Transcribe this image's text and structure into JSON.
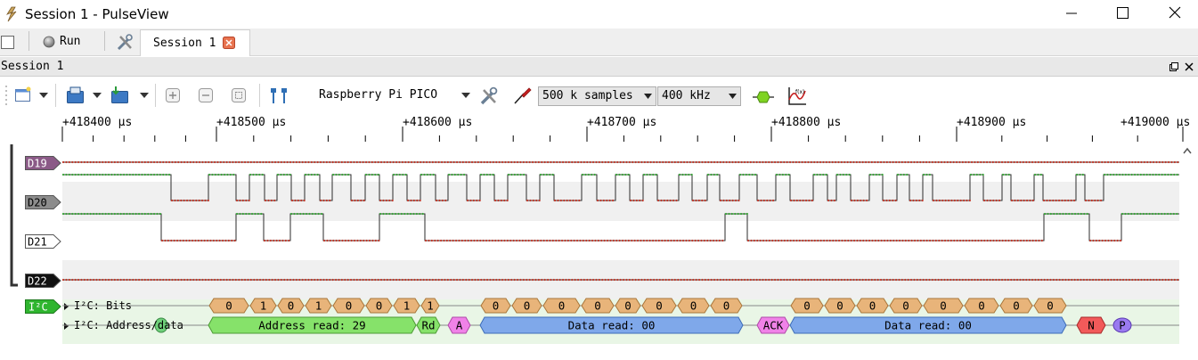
{
  "window": {
    "title": "Session 1 - PulseView"
  },
  "tabs": {
    "run_label": "Run",
    "session_tab_label": "Session 1"
  },
  "session_panel": {
    "title": "Session 1"
  },
  "toolbar": {
    "device": "Raspberry Pi PICO",
    "samples": "500 k samples",
    "rate": "400 kHz"
  },
  "ruler": {
    "labels": [
      "+418400 µs",
      "+418500 µs",
      "+418600 µs",
      "+418700 µs",
      "+418800 µs",
      "+418900 µs",
      "+419000 µs"
    ]
  },
  "channels": [
    {
      "name": "D19",
      "color": "#8b5a87",
      "text_color": "#ffffff"
    },
    {
      "name": "D20",
      "color": "#8c8c8c",
      "text_color": "#000000"
    },
    {
      "name": "D21",
      "color": "#ffffff",
      "text_color": "#000000"
    },
    {
      "name": "D22",
      "color": "#111111",
      "text_color": "#ffffff"
    }
  ],
  "decoder": {
    "name": "I²C",
    "row_bits": "I²C: Bits",
    "row_addr": "I²C: Address/data",
    "bits_groups": [
      [
        "0",
        "1",
        "0",
        "1",
        "0",
        "0",
        "1",
        "1"
      ],
      [
        "0",
        "0",
        "0",
        "0",
        "0",
        "0",
        "0",
        "0"
      ],
      [
        "0",
        "0",
        "0",
        "0",
        "0",
        "0",
        "0",
        "0"
      ]
    ],
    "annotations": {
      "addr": "Address read: 29",
      "rd": "Rd",
      "ack1": "A",
      "data1": "Data read: 00",
      "ack2": "ACK",
      "data2": "Data read: 00",
      "nack": "N",
      "stop": "P"
    }
  },
  "colors": {
    "bits": "#e8b47a",
    "address": "#86e26a",
    "data": "#7fa8ea",
    "ack": "#f082e8",
    "nack": "#f25a5a",
    "stop": "#9a7af0"
  }
}
